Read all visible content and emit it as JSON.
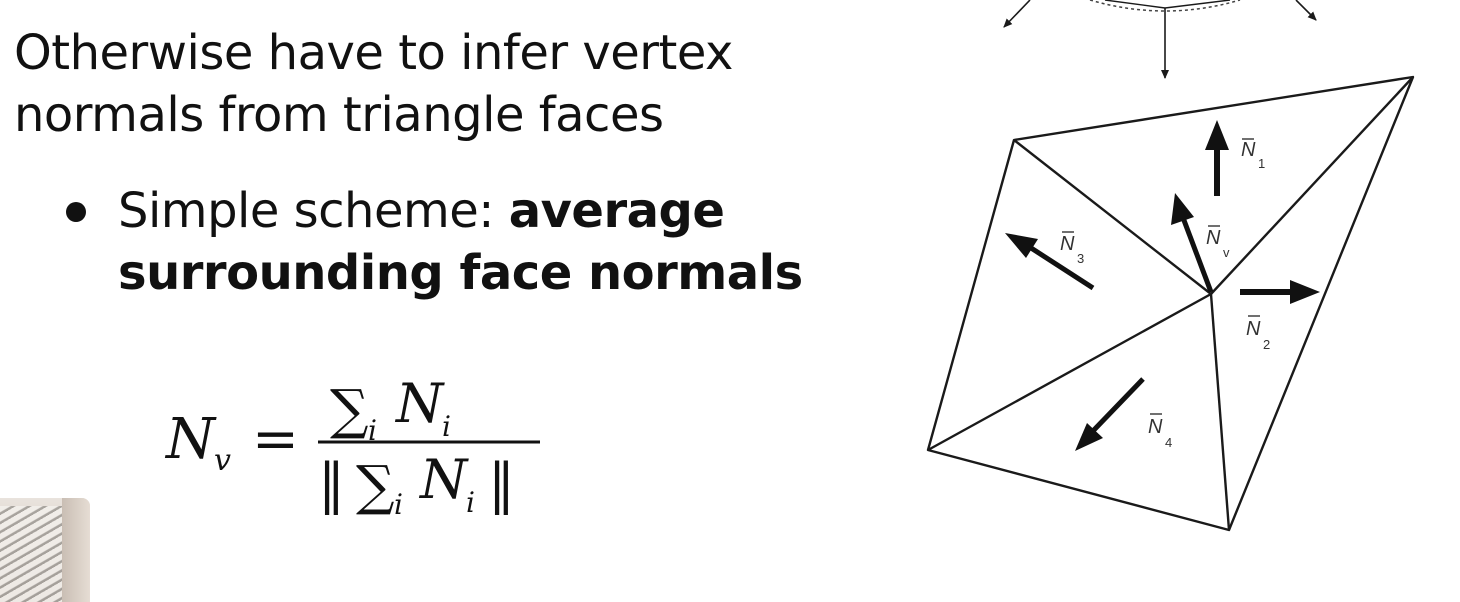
{
  "slide": {
    "intro_lines": [
      "Otherwise have to infer vertex",
      "normals from triangle faces"
    ],
    "bullet": {
      "line1_normal": "Simple scheme: ",
      "line1_bold": "average",
      "line2_bold": "surrounding face normals"
    },
    "formula": {
      "lhs_symbol": "N",
      "lhs_subscript": "v",
      "equals": "=",
      "sum_symbol": "∑",
      "sum_index": "i",
      "term_symbol": "N",
      "term_subscript": "i",
      "norm_bars": "‖"
    }
  },
  "diagram": {
    "labels": {
      "n1": {
        "symbol": "N",
        "subscript": "1"
      },
      "n2": {
        "symbol": "N",
        "subscript": "2"
      },
      "n3": {
        "symbol": "N",
        "subscript": "3"
      },
      "n4": {
        "symbol": "N",
        "subscript": "4"
      },
      "nv": {
        "symbol": "N",
        "subscript": "v"
      }
    },
    "stroke_color": "#1a1a1a",
    "arrow_color": "#111111"
  },
  "webcam": {
    "icon": "webcam-thumbnail"
  }
}
